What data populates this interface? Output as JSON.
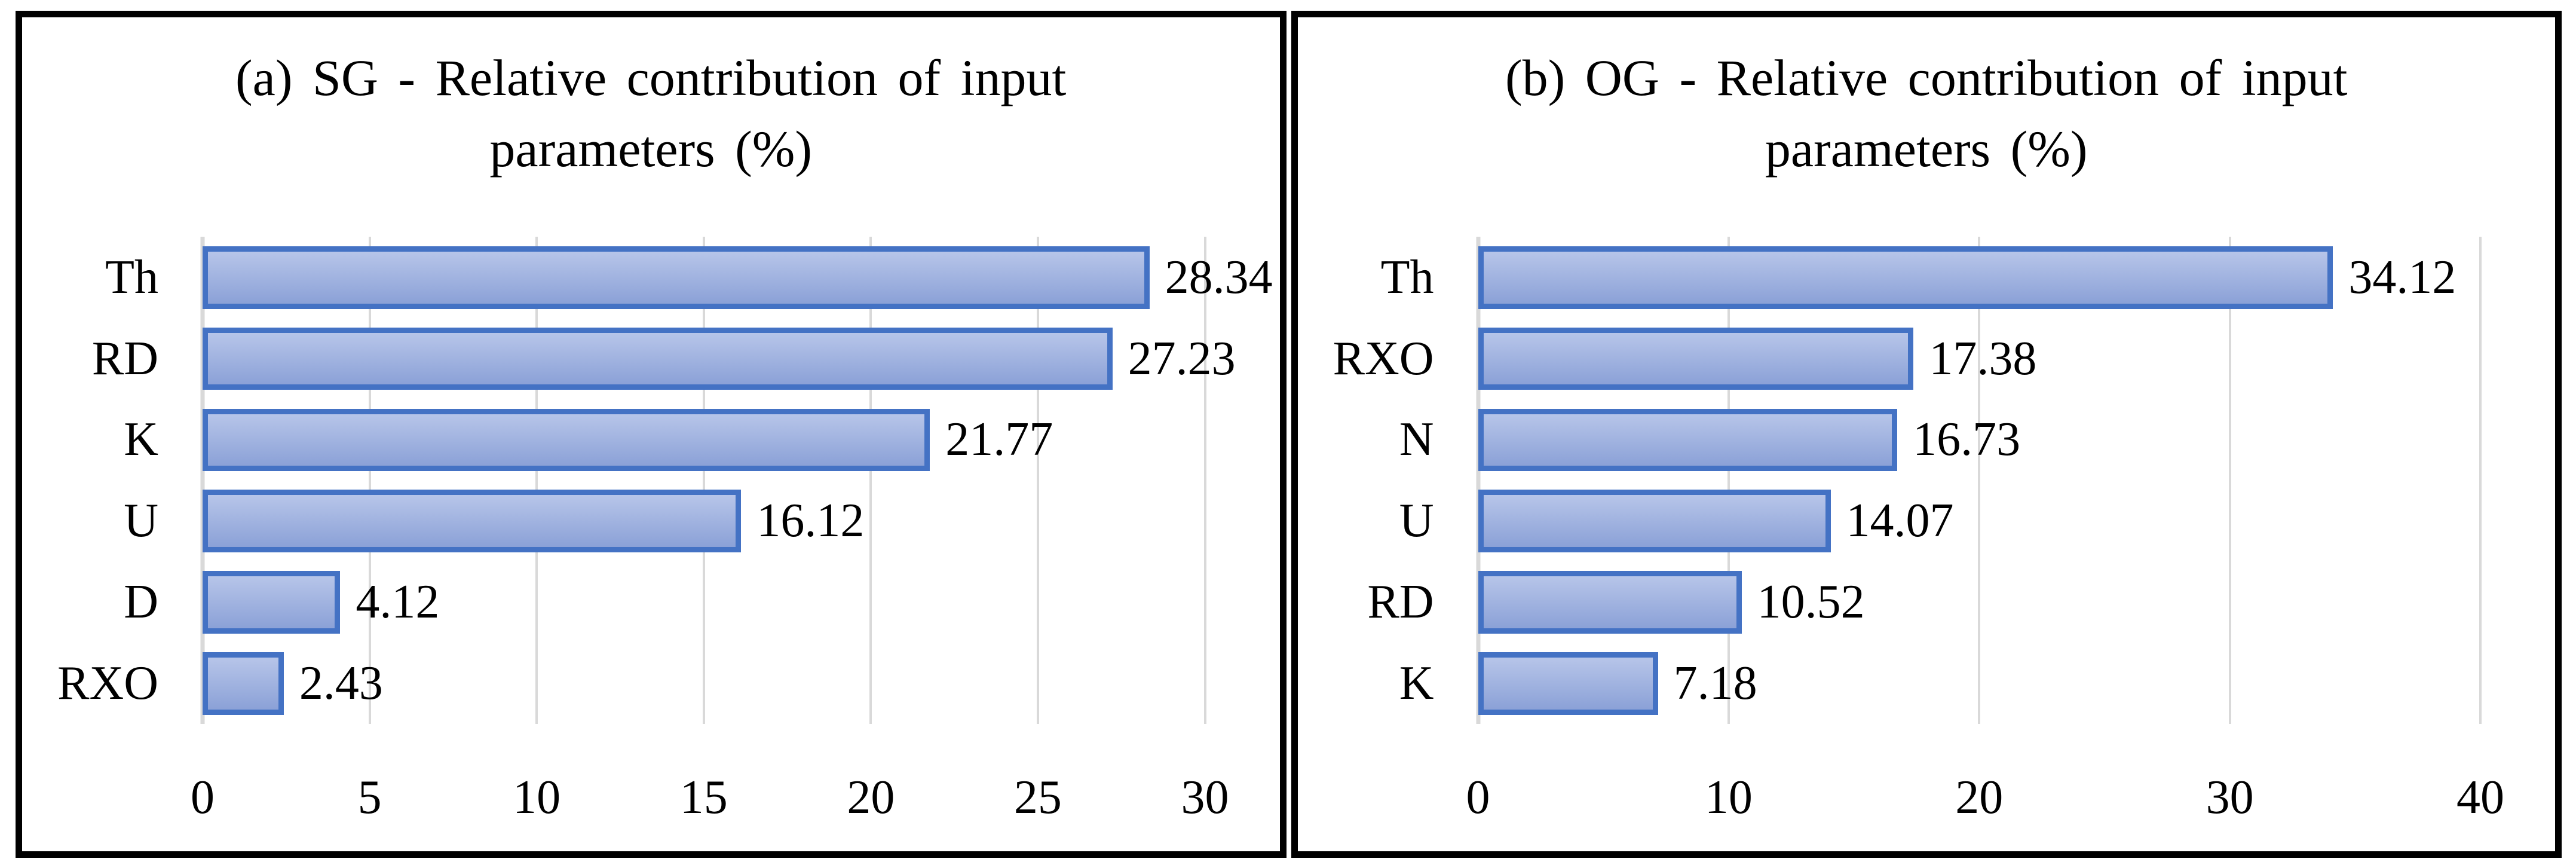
{
  "figure": {
    "background": "#ffffff",
    "panel_border_color": "#000000",
    "text_color": "#000000"
  },
  "chart_data": [
    {
      "type": "bar",
      "orientation": "horizontal",
      "panel_label": "(a)",
      "title": "(a) SG - Relative contribution of input parameters (%)",
      "title_lines": [
        "(a) SG - Relative contribution of input",
        "parameters (%)"
      ],
      "categories": [
        "Th",
        "RD",
        "K",
        "U",
        "D",
        "RXO"
      ],
      "values": [
        28.34,
        27.23,
        21.77,
        16.12,
        4.12,
        2.43
      ],
      "data_labels": [
        "28.34",
        "27.23",
        "21.77",
        "16.12",
        "4.12",
        "2.43"
      ],
      "xlabel": "",
      "ylabel": "",
      "xlim": [
        0,
        30
      ],
      "xticks": [
        0,
        5,
        10,
        15,
        20,
        25,
        30
      ],
      "grid": true,
      "legend": false,
      "bar_border_color": "#4472c4",
      "bar_fill_top": "#b7c5e9",
      "bar_fill_bottom": "#8ba1d7",
      "gridline_color": "#d9d9d9"
    },
    {
      "type": "bar",
      "orientation": "horizontal",
      "panel_label": "(b)",
      "title": "(b) OG - Relative contribution of input parameters (%)",
      "title_lines": [
        "(b) OG - Relative contribution of input",
        "parameters (%)"
      ],
      "categories": [
        "Th",
        "RXO",
        "N",
        "U",
        "RD",
        "K"
      ],
      "values": [
        34.12,
        17.38,
        16.73,
        14.07,
        10.52,
        7.18
      ],
      "data_labels": [
        "34.12",
        "17.38",
        "16.73",
        "14.07",
        "10.52",
        "7.18"
      ],
      "xlabel": "",
      "ylabel": "",
      "xlim": [
        0,
        40
      ],
      "xticks": [
        0,
        10,
        20,
        30,
        40
      ],
      "grid": true,
      "legend": false,
      "bar_border_color": "#4472c4",
      "bar_fill_top": "#b7c5e9",
      "bar_fill_bottom": "#8ba1d7",
      "gridline_color": "#d9d9d9"
    }
  ]
}
